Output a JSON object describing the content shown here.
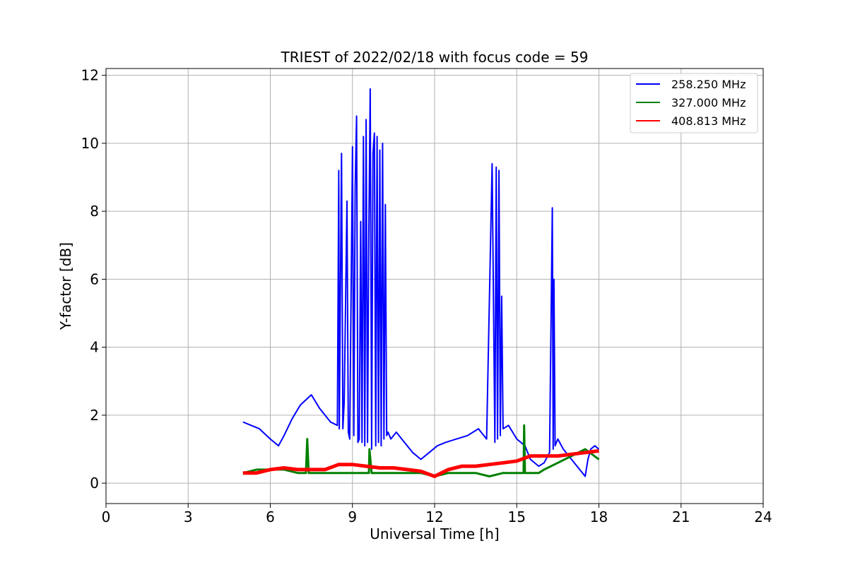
{
  "chart_data": {
    "type": "line",
    "title": "TRIEST of 2022/02/18 with focus code = 59",
    "xlabel": "Universal Time [h]",
    "ylabel": "Y-factor [dB]",
    "xlim": [
      0,
      24
    ],
    "ylim": [
      -0.6,
      12.2
    ],
    "xticks": [
      0,
      3,
      6,
      9,
      12,
      15,
      18,
      21,
      24
    ],
    "yticks": [
      0,
      2,
      4,
      6,
      8,
      10,
      12
    ],
    "grid": true,
    "legend_position": "top-right",
    "series": [
      {
        "name": "258.250 MHz",
        "color": "#0000ff",
        "x": [
          5.0,
          5.3,
          5.6,
          6.0,
          6.3,
          6.5,
          6.8,
          7.1,
          7.5,
          7.8,
          8.0,
          8.2,
          8.45,
          8.5,
          8.52,
          8.6,
          8.65,
          8.7,
          8.8,
          8.85,
          8.9,
          9.0,
          9.05,
          9.1,
          9.15,
          9.2,
          9.25,
          9.3,
          9.35,
          9.4,
          9.45,
          9.5,
          9.55,
          9.6,
          9.65,
          9.7,
          9.75,
          9.8,
          9.85,
          9.9,
          9.95,
          10.0,
          10.05,
          10.1,
          10.15,
          10.2,
          10.25,
          10.3,
          10.35,
          10.4,
          10.6,
          10.8,
          11.2,
          11.5,
          11.8,
          12.1,
          12.4,
          12.8,
          13.2,
          13.6,
          13.9,
          14.1,
          14.2,
          14.25,
          14.3,
          14.35,
          14.4,
          14.45,
          14.5,
          14.7,
          15.0,
          15.3,
          15.5,
          15.8,
          16.0,
          16.2,
          16.3,
          16.33,
          16.36,
          16.4,
          16.45,
          16.5,
          16.7,
          16.9,
          17.1,
          17.3,
          17.5,
          17.6,
          17.7,
          17.85,
          18.0
        ],
        "y": [
          1.8,
          1.7,
          1.6,
          1.3,
          1.1,
          1.4,
          1.9,
          2.3,
          2.6,
          2.2,
          2.0,
          1.8,
          1.7,
          9.2,
          1.6,
          9.7,
          1.6,
          2.4,
          8.3,
          1.5,
          1.3,
          9.9,
          1.4,
          8.7,
          10.8,
          1.2,
          1.3,
          7.7,
          1.2,
          10.2,
          1.1,
          10.7,
          1.2,
          7.5,
          11.6,
          1.0,
          9.7,
          10.3,
          1.1,
          10.2,
          1.2,
          9.8,
          1.1,
          10.0,
          1.3,
          8.2,
          1.4,
          1.5,
          1.4,
          1.3,
          1.5,
          1.3,
          0.9,
          0.7,
          0.9,
          1.1,
          1.2,
          1.3,
          1.4,
          1.6,
          1.3,
          9.4,
          1.2,
          9.3,
          1.3,
          9.2,
          1.4,
          5.5,
          1.6,
          1.7,
          1.3,
          1.1,
          0.7,
          0.5,
          0.6,
          0.9,
          8.1,
          1.0,
          6.0,
          1.1,
          1.2,
          1.3,
          1.0,
          0.8,
          0.6,
          0.4,
          0.2,
          0.7,
          1.0,
          1.1,
          1.0
        ]
      },
      {
        "name": "327.000 MHz",
        "color": "#008000",
        "x": [
          5.0,
          5.5,
          6.0,
          6.5,
          7.0,
          7.3,
          7.35,
          7.4,
          8.0,
          8.5,
          9.0,
          9.6,
          9.62,
          9.7,
          10.0,
          10.5,
          11.0,
          11.5,
          12.0,
          12.5,
          13.0,
          13.5,
          14.0,
          14.5,
          15.0,
          15.25,
          15.27,
          15.3,
          15.8,
          16.0,
          16.5,
          17.0,
          17.5,
          18.0
        ],
        "y": [
          0.3,
          0.4,
          0.4,
          0.4,
          0.3,
          0.3,
          1.3,
          0.3,
          0.3,
          0.3,
          0.3,
          0.3,
          1.0,
          0.3,
          0.3,
          0.3,
          0.3,
          0.3,
          0.2,
          0.3,
          0.3,
          0.3,
          0.2,
          0.3,
          0.3,
          0.3,
          1.7,
          0.3,
          0.3,
          0.4,
          0.6,
          0.8,
          1.0,
          0.7
        ]
      },
      {
        "name": "408.813 MHz",
        "color": "#ff0000",
        "x": [
          5.0,
          5.5,
          6.0,
          6.5,
          7.0,
          7.5,
          8.0,
          8.5,
          9.0,
          9.5,
          10.0,
          10.5,
          11.0,
          11.5,
          12.0,
          12.5,
          13.0,
          13.5,
          14.0,
          14.5,
          15.0,
          15.5,
          16.0,
          16.5,
          17.0,
          17.5,
          18.0
        ],
        "y": [
          0.3,
          0.3,
          0.4,
          0.45,
          0.4,
          0.4,
          0.4,
          0.55,
          0.55,
          0.5,
          0.45,
          0.45,
          0.4,
          0.35,
          0.2,
          0.4,
          0.5,
          0.5,
          0.55,
          0.6,
          0.65,
          0.8,
          0.8,
          0.8,
          0.85,
          0.9,
          0.95
        ]
      }
    ]
  }
}
